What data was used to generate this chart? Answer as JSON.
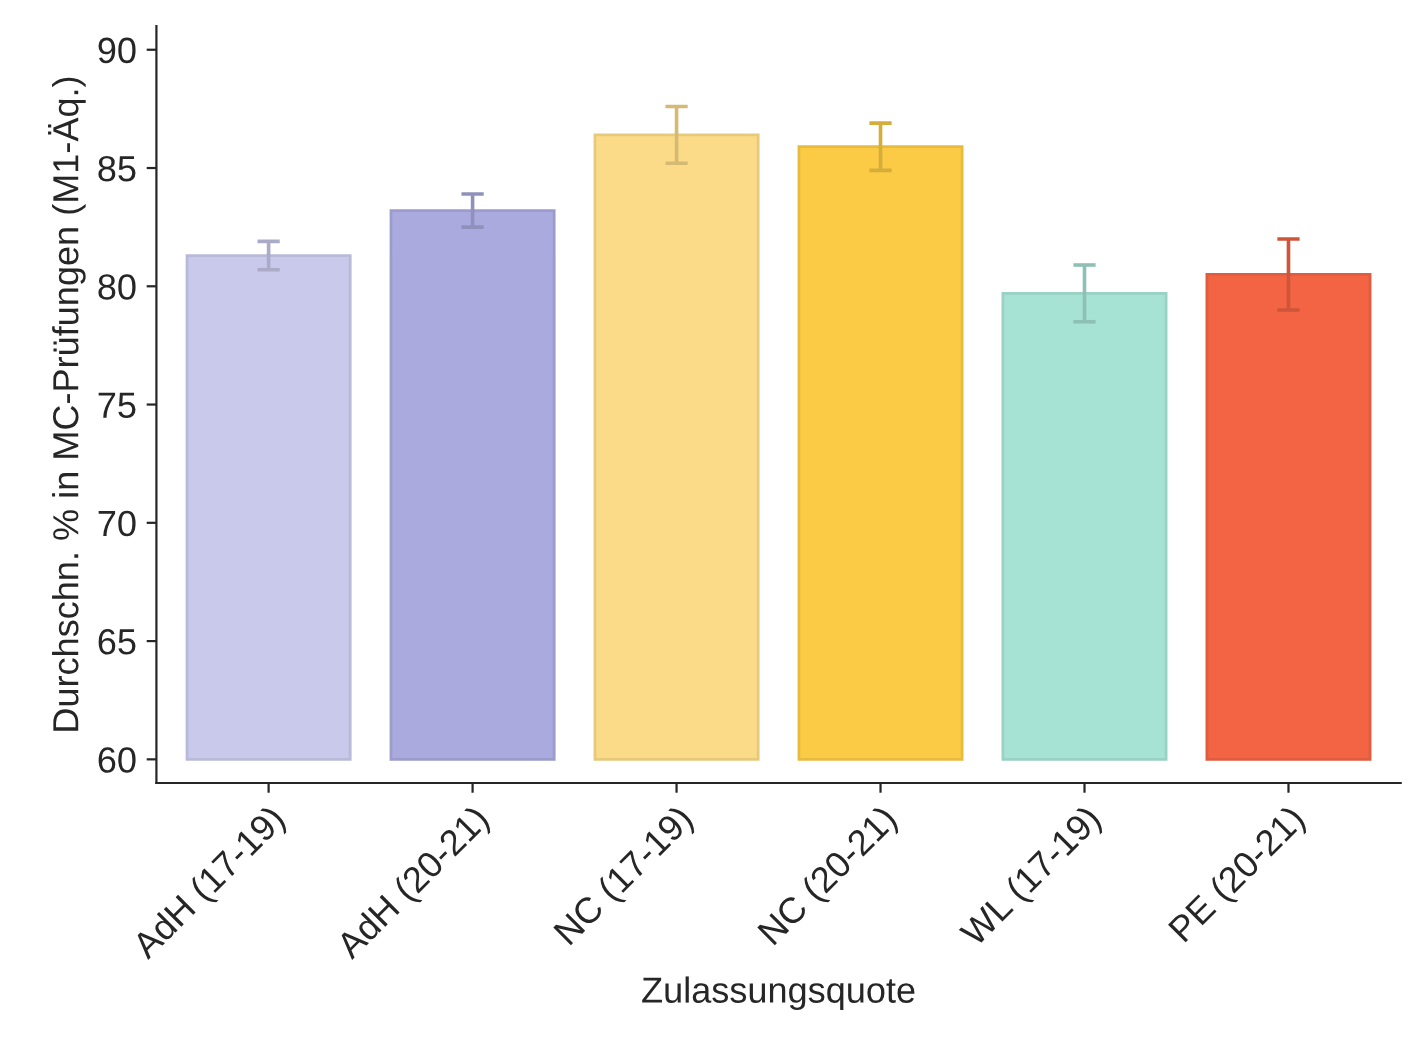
{
  "chart_data": {
    "type": "bar",
    "xlabel": "Zulassungsquote",
    "ylabel": "Durchschn. % in MC-Prüfungen (M1-Äq.)",
    "categories": [
      "AdH (17-19)",
      "AdH (20-21)",
      "NC (17-19)",
      "NC (20-21)",
      "WL (17-19)",
      "PE (20-21)"
    ],
    "base": [
      60,
      60,
      60,
      60,
      60,
      60
    ],
    "values": [
      21.3,
      23.2,
      26.4,
      25.9,
      19.7,
      20.5
    ],
    "errors": [
      0.6,
      0.7,
      1.2,
      1.0,
      1.2,
      1.5
    ],
    "colors": [
      "#c9c9eb",
      "#aaaade",
      "#fbdb87",
      "#fbcb45",
      "#a6e3d5",
      "#f26444"
    ],
    "ylim": [
      59,
      91
    ],
    "yticks": [
      60,
      65,
      70,
      75,
      80,
      85,
      90
    ],
    "grid": false,
    "legend": false
  }
}
